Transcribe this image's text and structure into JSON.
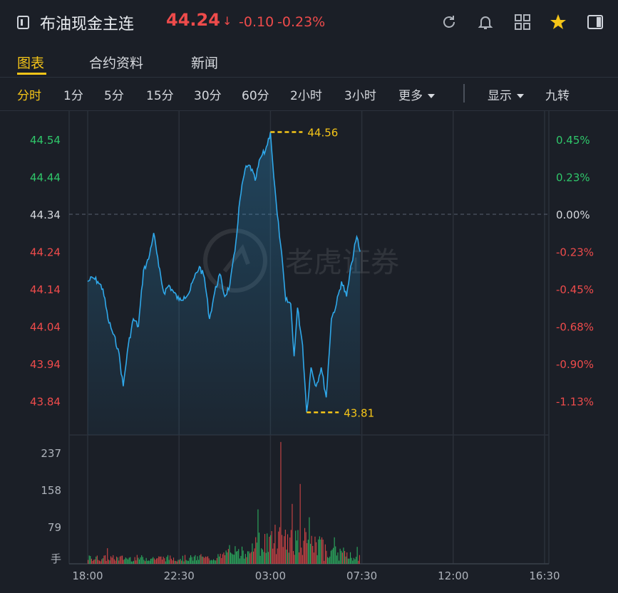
{
  "header": {
    "title": "布油现金主连",
    "price": "44.24",
    "arrow": "↓",
    "change": "-0.10",
    "change_pct": "-0.23%",
    "icons": [
      "menu-icon",
      "refresh-icon",
      "bell-icon",
      "grid-icon",
      "star-icon",
      "sidebar-icon"
    ]
  },
  "tabs": [
    {
      "label": "图表",
      "active": true
    },
    {
      "label": "合约资料",
      "active": false
    },
    {
      "label": "新闻",
      "active": false
    }
  ],
  "periods": [
    {
      "label": "分时",
      "active": true
    },
    {
      "label": "1分"
    },
    {
      "label": "5分"
    },
    {
      "label": "15分"
    },
    {
      "label": "30分"
    },
    {
      "label": "60分"
    },
    {
      "label": "2小时"
    },
    {
      "label": "3小时"
    },
    {
      "label": "更多"
    }
  ],
  "options": {
    "display": "显示",
    "nine": "九转"
  },
  "watermark": "老虎证券",
  "colors": {
    "up": "#ee4b4b",
    "down": "#2fc76a",
    "line": "#2fa8ea",
    "highlight": "#f5c518",
    "background": "#1b1f27"
  },
  "chart_data": {
    "type": "line",
    "price": {
      "ref_price": 44.34,
      "y_ticks": [
        "44.54",
        "44.44",
        "44.34",
        "44.24",
        "44.14",
        "44.04",
        "43.94",
        "43.84"
      ],
      "pct_ticks": [
        "0.45%",
        "0.23%",
        "0.00%",
        "-0.23%",
        "-0.45%",
        "-0.68%",
        "-0.90%",
        "-1.13%"
      ],
      "x_ticks": [
        "18:00",
        "22:30",
        "03:00",
        "07:30",
        "12:00",
        "16:30"
      ],
      "high": {
        "time": "03:00",
        "value": 44.56,
        "label": "44.56"
      },
      "low": {
        "time": "04:47",
        "value": 43.81,
        "label": "43.81"
      },
      "series": [
        {
          "t": "18:00",
          "v": 44.16
        },
        {
          "t": "18:15",
          "v": 44.17
        },
        {
          "t": "18:30",
          "v": 44.16
        },
        {
          "t": "18:45",
          "v": 44.14
        },
        {
          "t": "19:00",
          "v": 44.06
        },
        {
          "t": "19:15",
          "v": 44.02
        },
        {
          "t": "19:30",
          "v": 43.98
        },
        {
          "t": "19:45",
          "v": 43.88
        },
        {
          "t": "20:00",
          "v": 43.99
        },
        {
          "t": "20:15",
          "v": 44.06
        },
        {
          "t": "20:30",
          "v": 44.04
        },
        {
          "t": "20:45",
          "v": 44.19
        },
        {
          "t": "21:00",
          "v": 44.22
        },
        {
          "t": "21:15",
          "v": 44.29
        },
        {
          "t": "21:30",
          "v": 44.2
        },
        {
          "t": "21:45",
          "v": 44.13
        },
        {
          "t": "22:00",
          "v": 44.15
        },
        {
          "t": "22:15",
          "v": 44.13
        },
        {
          "t": "22:30",
          "v": 44.11
        },
        {
          "t": "22:45",
          "v": 44.12
        },
        {
          "t": "23:00",
          "v": 44.13
        },
        {
          "t": "23:15",
          "v": 44.17
        },
        {
          "t": "23:30",
          "v": 44.2
        },
        {
          "t": "23:45",
          "v": 44.17
        },
        {
          "t": "00:00",
          "v": 44.06
        },
        {
          "t": "00:15",
          "v": 44.13
        },
        {
          "t": "00:30",
          "v": 44.18
        },
        {
          "t": "00:45",
          "v": 44.12
        },
        {
          "t": "01:00",
          "v": 44.15
        },
        {
          "t": "01:15",
          "v": 44.24
        },
        {
          "t": "01:30",
          "v": 44.38
        },
        {
          "t": "01:45",
          "v": 44.46
        },
        {
          "t": "02:00",
          "v": 44.47
        },
        {
          "t": "02:15",
          "v": 44.43
        },
        {
          "t": "02:30",
          "v": 44.49
        },
        {
          "t": "02:45",
          "v": 44.51
        },
        {
          "t": "03:00",
          "v": 44.56
        },
        {
          "t": "03:10",
          "v": 44.44
        },
        {
          "t": "03:20",
          "v": 44.34
        },
        {
          "t": "03:30",
          "v": 44.26
        },
        {
          "t": "03:45",
          "v": 44.11
        },
        {
          "t": "04:00",
          "v": 44.1
        },
        {
          "t": "04:10",
          "v": 43.96
        },
        {
          "t": "04:20",
          "v": 44.09
        },
        {
          "t": "04:35",
          "v": 43.99
        },
        {
          "t": "04:47",
          "v": 43.81
        },
        {
          "t": "05:00",
          "v": 43.93
        },
        {
          "t": "05:15",
          "v": 43.88
        },
        {
          "t": "05:30",
          "v": 43.93
        },
        {
          "t": "05:45",
          "v": 43.85
        },
        {
          "t": "06:00",
          "v": 44.06
        },
        {
          "t": "06:15",
          "v": 44.1
        },
        {
          "t": "06:30",
          "v": 44.16
        },
        {
          "t": "06:45",
          "v": 44.12
        },
        {
          "t": "07:00",
          "v": 44.21
        },
        {
          "t": "07:15",
          "v": 44.28
        },
        {
          "t": "07:25",
          "v": 44.24
        }
      ]
    },
    "volume": {
      "y_ticks": [
        "237",
        "158",
        "79"
      ],
      "unit": "手",
      "max_tick": 237,
      "peak_time": "03:30",
      "peak_value": 260
    },
    "grid": true
  }
}
